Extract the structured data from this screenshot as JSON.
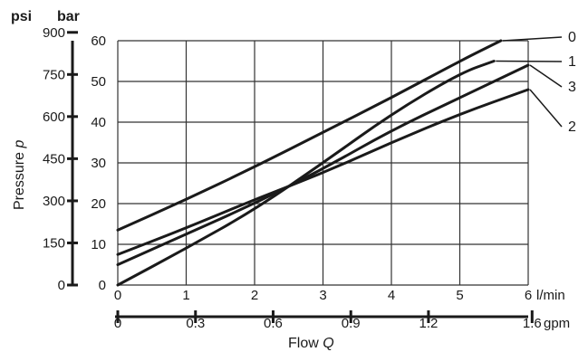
{
  "chart_data": {
    "type": "line",
    "x": {
      "label": "Flow",
      "symbol": "Q",
      "unit": "l/min",
      "range": [
        0,
        6
      ],
      "ticks": [
        "0",
        "1",
        "2",
        "3",
        "4",
        "5",
        "6"
      ],
      "secondary": {
        "unit": "gpm",
        "ticks": [
          "0",
          "0.3",
          "0.6",
          "0.9",
          "1.2",
          "1.6"
        ],
        "tick_values_lpm": [
          0,
          1.136,
          2.271,
          3.407,
          4.542,
          6.057
        ]
      }
    },
    "y": {
      "label": "Pressure",
      "symbol": "p",
      "unit": "bar",
      "range": [
        0,
        60
      ],
      "ticks": [
        "0",
        "10",
        "20",
        "30",
        "40",
        "50",
        "60"
      ],
      "secondary": {
        "unit": "psi",
        "ticks": [
          "0",
          "150",
          "300",
          "450",
          "600",
          "750",
          "900"
        ],
        "tick_values_bar": [
          0,
          10.34,
          20.68,
          31.03,
          41.37,
          51.71,
          62.05
        ]
      }
    },
    "grid": true,
    "series": [
      {
        "name": "0",
        "points": [
          [
            0,
            13.5
          ],
          [
            1,
            21
          ],
          [
            2,
            29
          ],
          [
            3,
            37.5
          ],
          [
            4,
            46
          ],
          [
            5,
            55
          ],
          [
            5.6,
            60
          ]
        ]
      },
      {
        "name": "1",
        "points": [
          [
            0,
            0
          ],
          [
            1,
            9
          ],
          [
            2,
            18.5
          ],
          [
            3,
            30
          ],
          [
            4,
            42
          ],
          [
            5,
            52
          ],
          [
            5.5,
            55
          ]
        ]
      },
      {
        "name": "3",
        "points": [
          [
            0,
            5
          ],
          [
            1,
            12.5
          ],
          [
            2,
            20
          ],
          [
            3,
            28.5
          ],
          [
            4,
            38
          ],
          [
            5,
            46
          ],
          [
            6,
            54
          ]
        ]
      },
      {
        "name": "2",
        "points": [
          [
            0,
            7.5
          ],
          [
            1,
            14
          ],
          [
            2,
            21
          ],
          [
            3,
            27.5
          ],
          [
            4,
            35
          ],
          [
            5,
            42
          ],
          [
            6,
            48
          ]
        ]
      }
    ]
  }
}
